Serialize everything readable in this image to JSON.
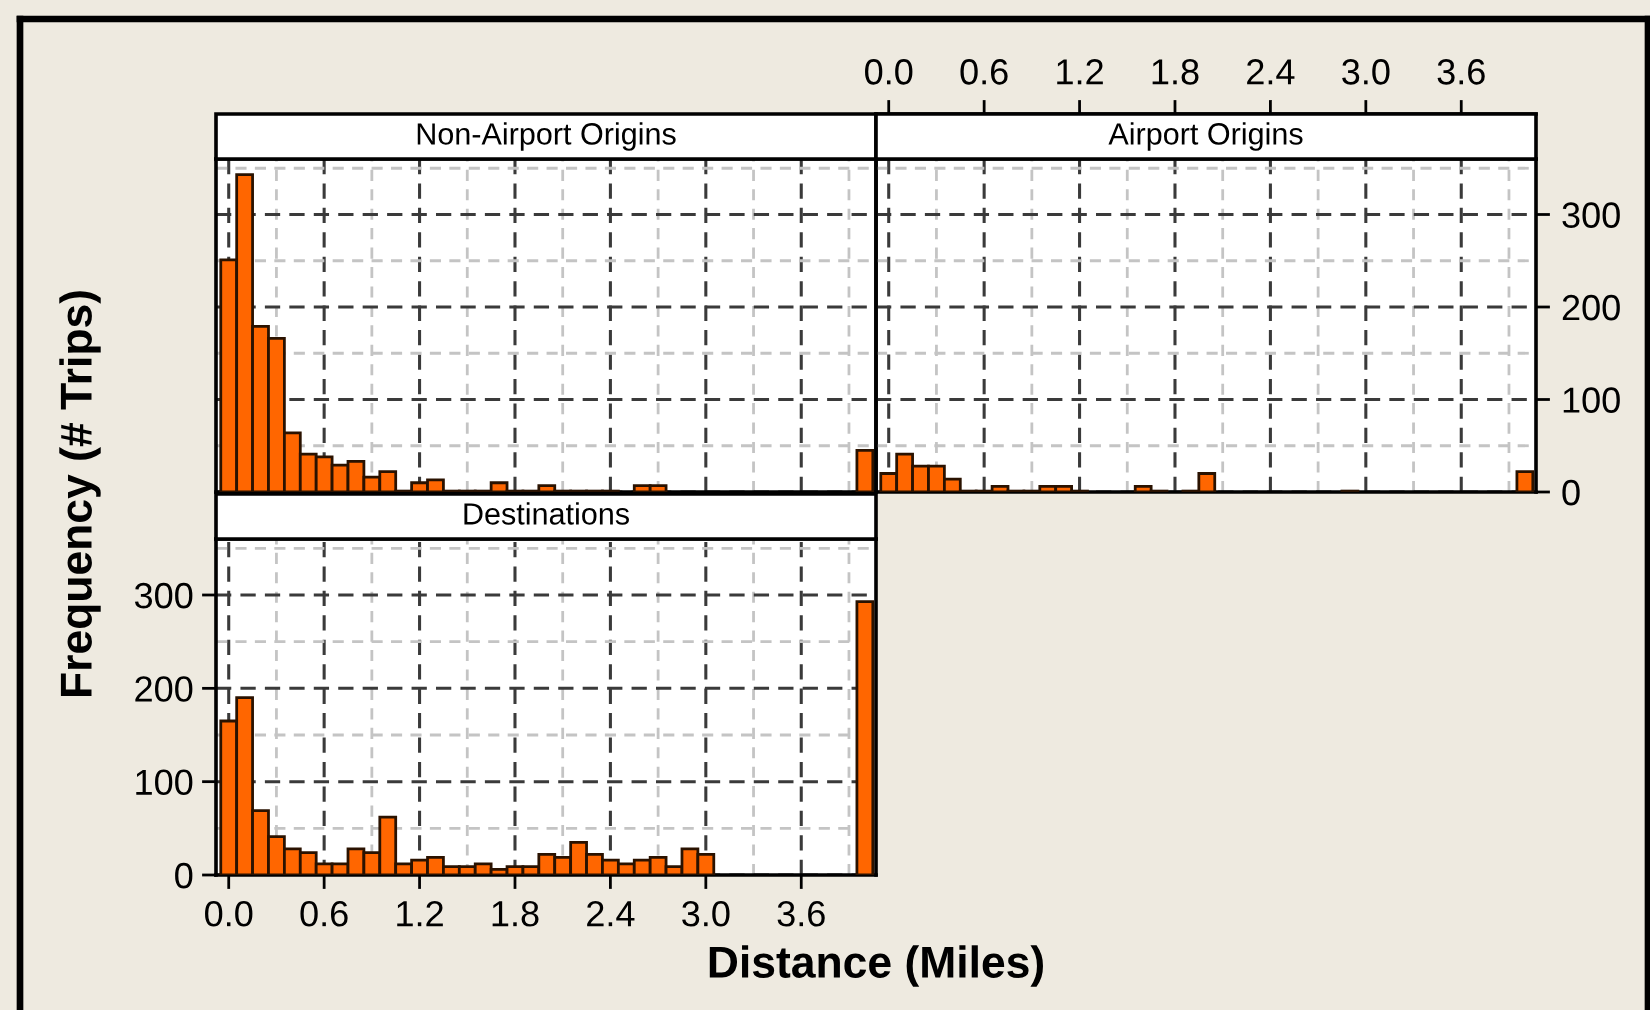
{
  "chart_data": [
    {
      "type": "histogram",
      "title": "Non-Airport Origins",
      "color": "#ff6600",
      "bins": [
        -0.05,
        0.05,
        0.15,
        0.25,
        0.35,
        0.45,
        0.55,
        0.65,
        0.75,
        0.85,
        0.95,
        1.05,
        1.15,
        1.25,
        1.35,
        1.45,
        1.55,
        1.65,
        1.75,
        1.85,
        1.95,
        2.05,
        2.15,
        2.25,
        2.35,
        2.45,
        2.55,
        2.65,
        2.75,
        2.85,
        2.95,
        3.05,
        3.15,
        3.25,
        3.35,
        3.45,
        3.55,
        3.65,
        3.75,
        3.85,
        3.95,
        4.05
      ],
      "values": [
        251,
        343,
        179,
        166,
        64,
        41,
        38,
        29,
        33,
        16,
        22,
        1,
        10,
        13,
        1,
        1,
        1,
        10,
        1,
        1,
        7,
        1,
        1,
        1,
        1,
        0,
        7,
        7,
        0,
        0,
        0,
        0,
        0,
        0,
        0,
        0,
        0,
        0,
        0,
        0,
        45
      ],
      "xlim": [
        -0.08,
        4.07
      ],
      "ylim": [
        0,
        360
      ],
      "yticks": [
        0,
        100,
        200,
        300
      ],
      "grid": true,
      "tick_labels": false
    },
    {
      "type": "histogram",
      "title": "Airport Origins",
      "color": "#ff6600",
      "bins": [
        -0.05,
        0.05,
        0.15,
        0.25,
        0.35,
        0.45,
        0.55,
        0.65,
        0.75,
        0.85,
        0.95,
        1.05,
        1.15,
        1.25,
        1.35,
        1.45,
        1.55,
        1.65,
        1.75,
        1.85,
        1.95,
        2.05,
        2.15,
        2.25,
        2.35,
        2.45,
        2.55,
        2.65,
        2.75,
        2.85,
        2.95,
        3.05,
        3.15,
        3.25,
        3.35,
        3.45,
        3.55,
        3.65,
        3.75,
        3.85,
        3.95,
        4.05
      ],
      "values": [
        20,
        41,
        28,
        28,
        14,
        1,
        1,
        6,
        1,
        1,
        6,
        6,
        1,
        0,
        0,
        0,
        6,
        1,
        0,
        1,
        20,
        0,
        0,
        0,
        0,
        0,
        0,
        0,
        0,
        1,
        0,
        0,
        0,
        0,
        0,
        0,
        0,
        0,
        0,
        0,
        22
      ],
      "xlim": [
        -0.08,
        4.07
      ],
      "x2lim": [
        -0.08,
        4.07
      ],
      "x2ticks": [
        {
          "value": 0,
          "label": "0.0"
        },
        0.6,
        1.2,
        1.8,
        2.4,
        {
          "value": 3,
          "label": "3.0"
        },
        3.6
      ],
      "ylim": [
        0,
        360
      ],
      "yticks": [
        0,
        100,
        200,
        300
      ],
      "grid": true
    },
    {
      "type": "histogram",
      "title": "Destinations",
      "color": "#ff6600",
      "xlabel": "Distance (Miles)",
      "ylabel": "Frequency (# Trips)",
      "bins": [
        -0.05,
        0.05,
        0.15,
        0.25,
        0.35,
        0.45,
        0.55,
        0.65,
        0.75,
        0.85,
        0.95,
        1.05,
        1.15,
        1.25,
        1.35,
        1.45,
        1.55,
        1.65,
        1.75,
        1.85,
        1.95,
        2.05,
        2.15,
        2.25,
        2.35,
        2.45,
        2.55,
        2.65,
        2.75,
        2.85,
        2.95,
        3.05,
        3.15,
        3.25,
        3.35,
        3.45,
        3.55,
        3.65,
        3.75,
        3.85,
        3.95,
        4.05
      ],
      "values": [
        165,
        190,
        69,
        41,
        28,
        24,
        12,
        12,
        28,
        24,
        62,
        12,
        16,
        19,
        9,
        9,
        12,
        6,
        9,
        9,
        22,
        19,
        35,
        22,
        16,
        12,
        16,
        19,
        9,
        28,
        22,
        0,
        0,
        0,
        0,
        0,
        0,
        0,
        0,
        0,
        293
      ],
      "xlim": [
        -0.08,
        4.07
      ],
      "xticks": [
        {
          "value": 0,
          "label": "0.0"
        },
        0.6,
        1.2,
        1.8,
        2.4,
        {
          "value": 3,
          "label": "3.0"
        },
        3.6
      ],
      "ylim": [
        0,
        360
      ],
      "yticks": [
        0,
        100,
        200,
        300
      ],
      "grid": true
    }
  ]
}
